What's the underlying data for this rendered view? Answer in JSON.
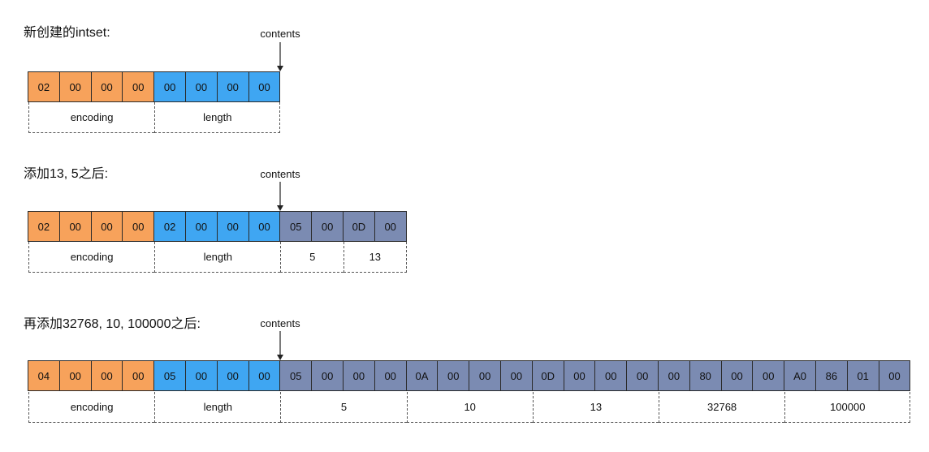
{
  "diagrams": [
    {
      "title": "新创建的intset:",
      "contents_label": "contents",
      "bytes": [
        {
          "v": "02",
          "c": "orange"
        },
        {
          "v": "00",
          "c": "orange"
        },
        {
          "v": "00",
          "c": "orange"
        },
        {
          "v": "00",
          "c": "orange"
        },
        {
          "v": "00",
          "c": "blue"
        },
        {
          "v": "00",
          "c": "blue"
        },
        {
          "v": "00",
          "c": "blue"
        },
        {
          "v": "00",
          "c": "blue"
        }
      ],
      "groups": [
        {
          "label": "encoding",
          "span": 4
        },
        {
          "label": "length",
          "span": 4
        }
      ]
    },
    {
      "title": "添加13, 5之后:",
      "contents_label": "contents",
      "bytes": [
        {
          "v": "02",
          "c": "orange"
        },
        {
          "v": "00",
          "c": "orange"
        },
        {
          "v": "00",
          "c": "orange"
        },
        {
          "v": "00",
          "c": "orange"
        },
        {
          "v": "02",
          "c": "blue"
        },
        {
          "v": "00",
          "c": "blue"
        },
        {
          "v": "00",
          "c": "blue"
        },
        {
          "v": "00",
          "c": "blue"
        },
        {
          "v": "05",
          "c": "gray"
        },
        {
          "v": "00",
          "c": "gray"
        },
        {
          "v": "0D",
          "c": "gray"
        },
        {
          "v": "00",
          "c": "gray"
        }
      ],
      "groups": [
        {
          "label": "encoding",
          "span": 4
        },
        {
          "label": "length",
          "span": 4
        },
        {
          "label": "5",
          "span": 2
        },
        {
          "label": "13",
          "span": 2
        }
      ]
    },
    {
      "title": "再添加32768, 10, 100000之后:",
      "contents_label": "contents",
      "bytes": [
        {
          "v": "04",
          "c": "orange"
        },
        {
          "v": "00",
          "c": "orange"
        },
        {
          "v": "00",
          "c": "orange"
        },
        {
          "v": "00",
          "c": "orange"
        },
        {
          "v": "05",
          "c": "blue"
        },
        {
          "v": "00",
          "c": "blue"
        },
        {
          "v": "00",
          "c": "blue"
        },
        {
          "v": "00",
          "c": "blue"
        },
        {
          "v": "05",
          "c": "gray"
        },
        {
          "v": "00",
          "c": "gray"
        },
        {
          "v": "00",
          "c": "gray"
        },
        {
          "v": "00",
          "c": "gray"
        },
        {
          "v": "0A",
          "c": "gray"
        },
        {
          "v": "00",
          "c": "gray"
        },
        {
          "v": "00",
          "c": "gray"
        },
        {
          "v": "00",
          "c": "gray"
        },
        {
          "v": "0D",
          "c": "gray"
        },
        {
          "v": "00",
          "c": "gray"
        },
        {
          "v": "00",
          "c": "gray"
        },
        {
          "v": "00",
          "c": "gray"
        },
        {
          "v": "00",
          "c": "gray"
        },
        {
          "v": "80",
          "c": "gray"
        },
        {
          "v": "00",
          "c": "gray"
        },
        {
          "v": "00",
          "c": "gray"
        },
        {
          "v": "A0",
          "c": "gray"
        },
        {
          "v": "86",
          "c": "gray"
        },
        {
          "v": "01",
          "c": "gray"
        },
        {
          "v": "00",
          "c": "gray"
        }
      ],
      "groups": [
        {
          "label": "encoding",
          "span": 4
        },
        {
          "label": "length",
          "span": 4
        },
        {
          "label": "5",
          "span": 4
        },
        {
          "label": "10",
          "span": 4
        },
        {
          "label": "13",
          "span": 4
        },
        {
          "label": "32768",
          "span": 4
        },
        {
          "label": "100000",
          "span": 4
        }
      ]
    }
  ],
  "colors": {
    "orange": "#f7a25b",
    "blue": "#3fa6f2",
    "gray": "#7b8bb2"
  }
}
